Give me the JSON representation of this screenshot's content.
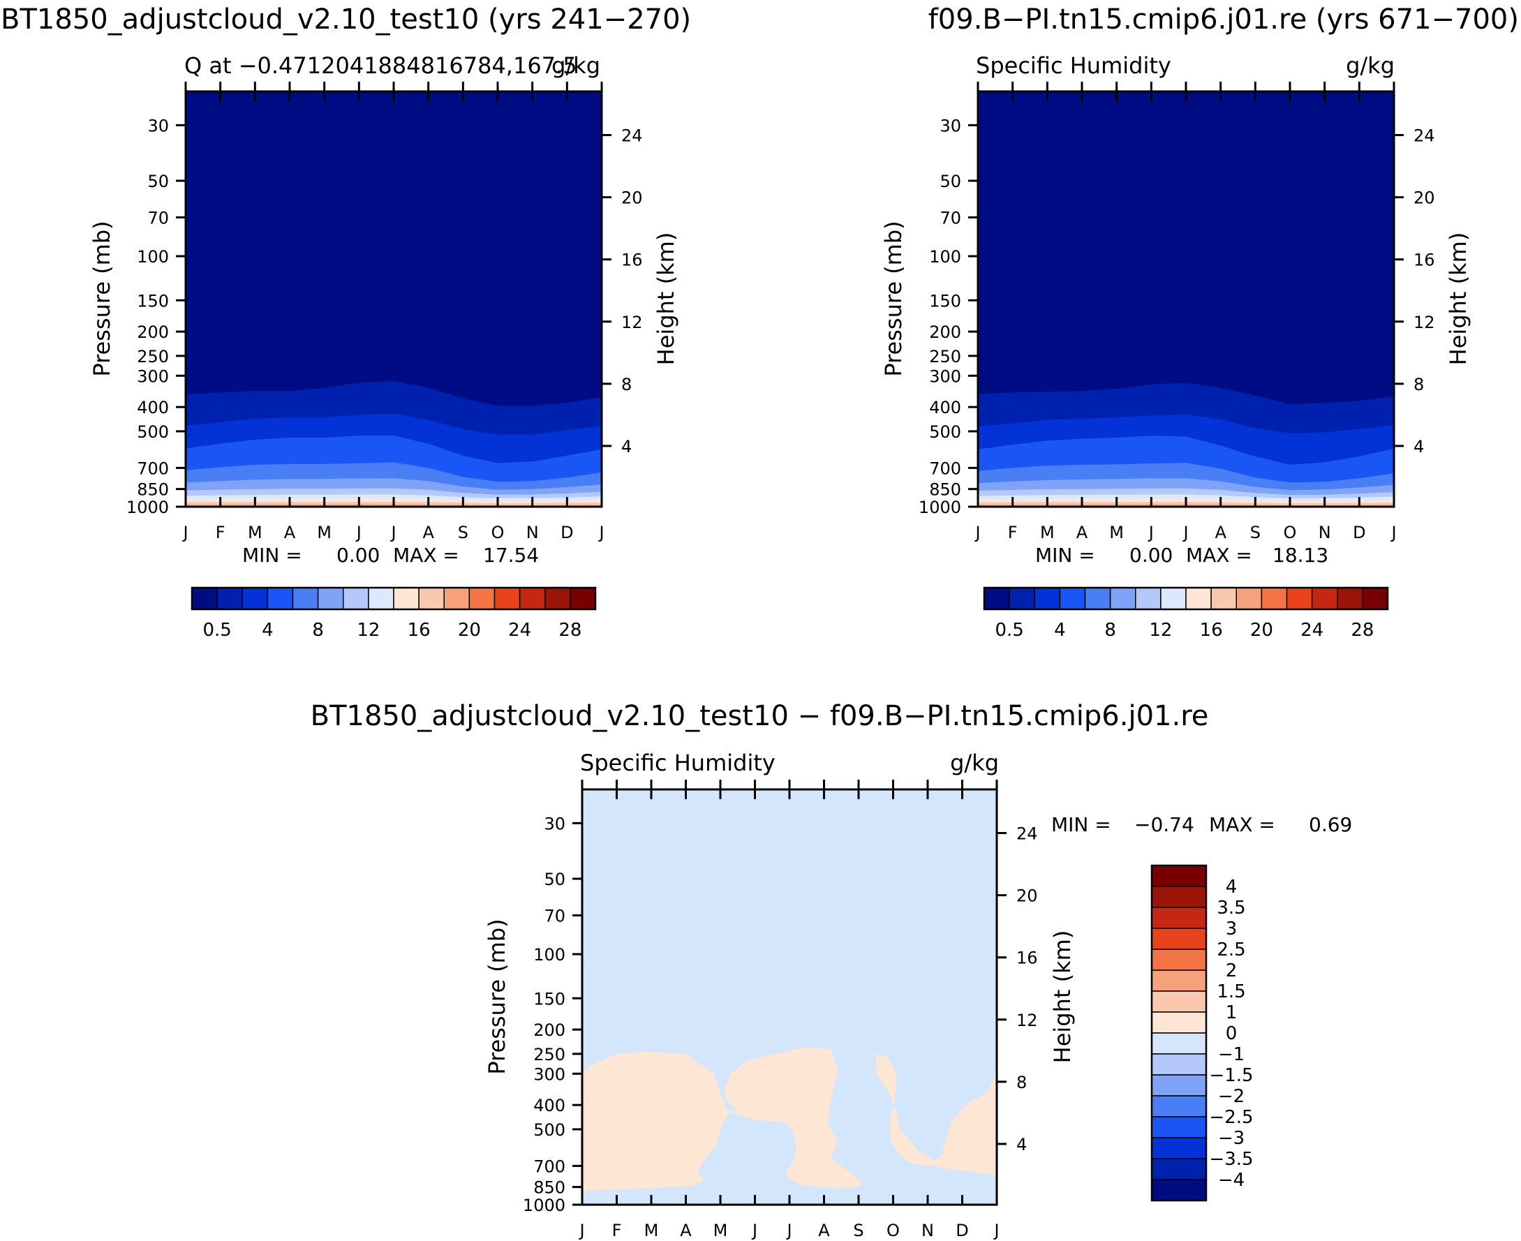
{
  "figure": {
    "left_title": "BT1850_adjustcloud_v2.10_test10 (yrs 241-270)",
    "right_title": "f09.B-PI.tn15.cmip6.j01.re (yrs 671-700)",
    "diff_title": "BT1850_adjustcloud_v2.10_test10 - f09.B-PI.tn15.cmip6.j01.re"
  },
  "colors": {
    "abs_palette": [
      "#000C84",
      "#0021AE",
      "#0332D6",
      "#1A55F5",
      "#4A7EF5",
      "#7EA3F7",
      "#B4C9FA",
      "#DCE8FC",
      "#FDE6D3",
      "#FAC8AE",
      "#F6A17B",
      "#F47446",
      "#E8431A",
      "#C62712",
      "#9B1408",
      "#780000"
    ],
    "diff_palette": [
      "#000C84",
      "#0021AE",
      "#0332D6",
      "#1A55F5",
      "#4A7EF5",
      "#7EA3F7",
      "#B4C9FA",
      "#D4E6FC",
      "#FDE6D3",
      "#FAC8AE",
      "#F6A17B",
      "#F47446",
      "#E8431A",
      "#C62712",
      "#9B1408",
      "#780000"
    ]
  },
  "chart_data": [
    {
      "type": "contour",
      "subtitle_left": "Q at -0.4712041884816784,167.5",
      "subtitle_right": "g/kg",
      "xlabel": "",
      "ylabel": "Pressure (mb)",
      "ylabel_right": "Height (km)",
      "x_ticks": [
        "J",
        "F",
        "M",
        "A",
        "M",
        "J",
        "J",
        "A",
        "S",
        "O",
        "N",
        "D",
        "J"
      ],
      "y_ticks": [
        "30",
        "50",
        "70",
        "100",
        "150",
        "200",
        "250",
        "300",
        "400",
        "500",
        "700",
        "850",
        "1000"
      ],
      "y_ticks_right": [
        "24",
        "20",
        "16",
        "12",
        "8",
        "4"
      ],
      "ylim": [
        1000,
        22
      ],
      "stats": {
        "min_label": "MIN =",
        "min": "0.00",
        "max_label": "MAX =",
        "max": "17.54"
      },
      "colorbar_labels": [
        "0.5",
        "4",
        "8",
        "12",
        "16",
        "20",
        "24",
        "28"
      ],
      "contour_levels": [
        0.5,
        1,
        2,
        4,
        6,
        8,
        10,
        12,
        14,
        16,
        18,
        20,
        22,
        24,
        26,
        28
      ],
      "contour_pressure_by_month": [
        [
          355,
          350,
          345,
          345,
          335,
          320,
          315,
          335,
          370,
          395,
          395,
          385,
          365
        ],
        [
          475,
          460,
          445,
          440,
          440,
          430,
          425,
          450,
          490,
          515,
          515,
          495,
          475
        ],
        [
          585,
          560,
          540,
          530,
          530,
          520,
          520,
          560,
          625,
          670,
          660,
          625,
          590
        ],
        [
          715,
          695,
          680,
          675,
          675,
          670,
          665,
          700,
          760,
          795,
          790,
          765,
          730
        ],
        [
          800,
          790,
          780,
          775,
          775,
          770,
          770,
          790,
          830,
          855,
          850,
          835,
          815
        ],
        [
          860,
          855,
          850,
          848,
          848,
          845,
          845,
          855,
          880,
          895,
          893,
          885,
          872
        ],
        [
          905,
          900,
          897,
          895,
          895,
          893,
          893,
          900,
          915,
          925,
          923,
          918,
          910
        ],
        [
          935,
          932,
          930,
          930,
          930,
          928,
          928,
          933,
          942,
          948,
          947,
          944,
          940
        ],
        [
          960,
          958,
          957,
          957,
          957,
          956,
          956,
          958,
          963,
          967,
          966,
          964,
          962
        ],
        [
          980,
          980,
          979,
          979,
          979,
          978,
          978,
          980,
          983,
          985,
          985,
          984,
          982
        ]
      ]
    },
    {
      "type": "contour",
      "subtitle_left": "Specific Humidity",
      "subtitle_right": "g/kg",
      "xlabel": "",
      "ylabel": "Pressure (mb)",
      "ylabel_right": "Height (km)",
      "x_ticks": [
        "J",
        "F",
        "M",
        "A",
        "M",
        "J",
        "J",
        "A",
        "S",
        "O",
        "N",
        "D",
        "J"
      ],
      "y_ticks": [
        "30",
        "50",
        "70",
        "100",
        "150",
        "200",
        "250",
        "300",
        "400",
        "500",
        "700",
        "850",
        "1000"
      ],
      "y_ticks_right": [
        "24",
        "20",
        "16",
        "12",
        "8",
        "4"
      ],
      "ylim": [
        1000,
        22
      ],
      "stats": {
        "min_label": "MIN =",
        "min": "0.00",
        "max_label": "MAX =",
        "max": "18.13"
      },
      "colorbar_labels": [
        "0.5",
        "4",
        "8",
        "12",
        "16",
        "20",
        "24",
        "28"
      ],
      "contour_levels": [
        0.5,
        1,
        2,
        4,
        6,
        8,
        10,
        12,
        14,
        16,
        18,
        20,
        22,
        24,
        26,
        28
      ],
      "contour_pressure_by_month": [
        [
          355,
          350,
          348,
          345,
          338,
          325,
          320,
          335,
          360,
          390,
          385,
          378,
          362
        ],
        [
          478,
          465,
          450,
          445,
          440,
          432,
          428,
          448,
          485,
          510,
          505,
          490,
          472
        ],
        [
          590,
          565,
          545,
          535,
          530,
          520,
          525,
          570,
          630,
          680,
          665,
          630,
          585
        ],
        [
          720,
          700,
          685,
          680,
          678,
          672,
          668,
          705,
          765,
          800,
          795,
          770,
          735
        ],
        [
          805,
          793,
          783,
          778,
          775,
          770,
          770,
          792,
          833,
          858,
          853,
          838,
          818
        ],
        [
          862,
          857,
          852,
          850,
          848,
          845,
          845,
          856,
          882,
          897,
          895,
          887,
          874
        ],
        [
          906,
          902,
          898,
          896,
          895,
          893,
          893,
          901,
          916,
          926,
          924,
          919,
          911
        ],
        [
          936,
          933,
          931,
          930,
          930,
          928,
          928,
          934,
          943,
          949,
          948,
          945,
          941
        ],
        [
          961,
          959,
          958,
          957,
          957,
          956,
          956,
          959,
          964,
          968,
          967,
          965,
          963
        ],
        [
          981,
          980,
          980,
          979,
          979,
          978,
          978,
          980,
          983,
          985,
          985,
          984,
          983
        ]
      ]
    },
    {
      "type": "contour",
      "subtitle_left": "Specific Humidity",
      "subtitle_right": "g/kg",
      "xlabel": "",
      "ylabel": "Pressure (mb)",
      "ylabel_right": "Height (km)",
      "x_ticks": [
        "J",
        "F",
        "M",
        "A",
        "M",
        "J",
        "J",
        "A",
        "S",
        "O",
        "N",
        "D",
        "J"
      ],
      "y_ticks": [
        "30",
        "50",
        "70",
        "100",
        "150",
        "200",
        "250",
        "300",
        "400",
        "500",
        "700",
        "850",
        "1000"
      ],
      "y_ticks_right": [
        "24",
        "20",
        "16",
        "12",
        "8",
        "4"
      ],
      "ylim": [
        1000,
        22
      ],
      "stats": {
        "min_label": "MIN =",
        "min": "-0.74",
        "max_label": "MAX =",
        "max": "0.69"
      },
      "colorbar_labels": [
        "4",
        "3.5",
        "3",
        "2.5",
        "2",
        "1.5",
        "1",
        "0",
        "-1",
        "-1.5",
        "-2",
        "-2.5",
        "-3",
        "-3.5",
        "-4"
      ],
      "contour_levels": [
        -4,
        -3.5,
        -3,
        -2.5,
        -2,
        -1.5,
        -1,
        0,
        1,
        1.5,
        2,
        2.5,
        3,
        3.5,
        4
      ],
      "background_level_index": 7,
      "positive_regions": [
        [
          [
            0.0,
            300
          ],
          [
            0.3,
            275
          ],
          [
            1.0,
            250
          ],
          [
            2.0,
            245
          ],
          [
            3.0,
            250
          ],
          [
            3.8,
            300
          ],
          [
            4.0,
            360
          ],
          [
            4.2,
            420
          ],
          [
            4.6,
            440
          ],
          [
            5.0,
            460
          ],
          [
            5.9,
            470
          ],
          [
            6.1,
            510
          ],
          [
            6.2,
            600
          ],
          [
            6.1,
            680
          ],
          [
            5.9,
            740
          ],
          [
            6.0,
            790
          ],
          [
            6.3,
            830
          ],
          [
            6.9,
            850
          ],
          [
            7.3,
            860
          ],
          [
            7.8,
            855
          ],
          [
            8.1,
            840
          ],
          [
            8.0,
            790
          ],
          [
            7.6,
            720
          ],
          [
            7.2,
            650
          ],
          [
            7.4,
            560
          ],
          [
            7.1,
            470
          ],
          [
            7.2,
            380
          ],
          [
            7.4,
            290
          ],
          [
            7.2,
            240
          ],
          [
            6.5,
            235
          ],
          [
            5.6,
            250
          ],
          [
            4.8,
            265
          ],
          [
            4.3,
            300
          ],
          [
            4.1,
            350
          ],
          [
            4.2,
            390
          ],
          [
            4.5,
            415
          ],
          [
            4.2,
            440
          ],
          [
            4.05,
            480
          ],
          [
            3.85,
            590
          ],
          [
            3.5,
            670
          ],
          [
            3.35,
            740
          ],
          [
            3.5,
            800
          ],
          [
            3.2,
            840
          ],
          [
            2.0,
            860
          ],
          [
            1.0,
            870
          ],
          [
            0.0,
            880
          ]
        ],
        [
          [
            8.5,
            250
          ],
          [
            8.8,
            255
          ],
          [
            9.1,
            300
          ],
          [
            9.05,
            390
          ],
          [
            8.9,
            470
          ],
          [
            8.95,
            560
          ],
          [
            9.2,
            640
          ],
          [
            9.6,
            690
          ],
          [
            10.2,
            700
          ],
          [
            10.6,
            720
          ],
          [
            11.3,
            740
          ],
          [
            12.0,
            760
          ],
          [
            12.0,
            300
          ],
          [
            11.7,
            360
          ],
          [
            11.2,
            390
          ],
          [
            10.7,
            460
          ],
          [
            10.5,
            560
          ],
          [
            10.4,
            640
          ],
          [
            10.2,
            660
          ],
          [
            9.8,
            620
          ],
          [
            9.5,
            560
          ],
          [
            9.2,
            500
          ],
          [
            9.1,
            430
          ],
          [
            8.9,
            360
          ],
          [
            8.5,
            300
          ]
        ]
      ]
    }
  ]
}
